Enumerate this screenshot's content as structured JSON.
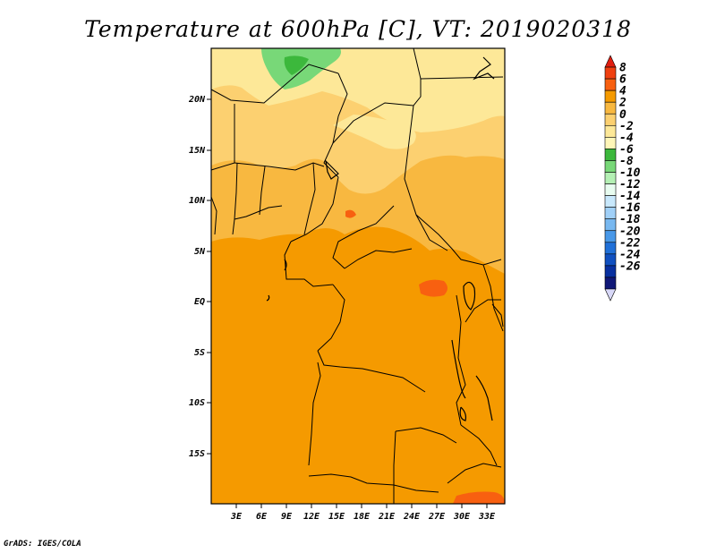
{
  "title": "Temperature at 600hPa [C], VT: 2019020318",
  "footer": "GrADS: IGES/COLA",
  "map": {
    "lat_ticks": [
      "20N",
      "15N",
      "10N",
      "5N",
      "EQ",
      "5S",
      "10S",
      "15S"
    ],
    "lon_ticks": [
      "3E",
      "6E",
      "9E",
      "12E",
      "15E",
      "18E",
      "21E",
      "24E",
      "27E",
      "30E",
      "33E"
    ]
  },
  "colorbar": {
    "labels": [
      "8",
      "6",
      "4",
      "2",
      "0",
      "-2",
      "-4",
      "-6",
      "-8",
      "-10",
      "-12",
      "-14",
      "-16",
      "-18",
      "-20",
      "-22",
      "-24",
      "-26"
    ],
    "colors": [
      "#e01e10",
      "#f04010",
      "#f86010",
      "#f59a00",
      "#f8b840",
      "#fcd070",
      "#fde898",
      "#fff6b8",
      "#3cb83c",
      "#78d878",
      "#b4f0b4",
      "#e8fcf0",
      "#c8e8fc",
      "#a0d0f8",
      "#78b8f0",
      "#4898e8",
      "#2070d8",
      "#1050c0",
      "#0830a0",
      "#101878",
      "#d8d8f8"
    ]
  },
  "chart_data": {
    "type": "heatmap",
    "title": "Temperature at 600hPa [C], VT: 2019020318",
    "variable": "Temperature at 600hPa",
    "units": "C",
    "valid_time": "2019020318",
    "lon_range_deg": [
      0,
      35
    ],
    "lat_range_deg": [
      -20,
      24
    ],
    "x_ticks": [
      "3E",
      "6E",
      "9E",
      "12E",
      "15E",
      "18E",
      "21E",
      "24E",
      "27E",
      "30E",
      "33E"
    ],
    "y_ticks": [
      "20N",
      "15N",
      "10N",
      "5N",
      "EQ",
      "5S",
      "10S",
      "15S"
    ],
    "color_levels": [
      8,
      6,
      4,
      2,
      0,
      -2,
      -4,
      -6,
      -8,
      -10,
      -12,
      -14,
      -16,
      -18,
      -20,
      -22,
      -24,
      -26
    ],
    "regions": [
      {
        "area": "far north (Sahara, ~21-24N, 5-13E)",
        "approx_value_range": "-8 to -4"
      },
      {
        "area": "northern belt (~12-22N)",
        "approx_value_range": "-4 to 0"
      },
      {
        "area": "Sahel (~5-12N)",
        "approx_value_range": "0 to 2"
      },
      {
        "area": "equatorial and southern Africa (~5N-20S)",
        "approx_value_range": "2 to 4"
      },
      {
        "area": "isolated spots (~1N 27E, ~19S 33E)",
        "approx_value_range": "4 to 6"
      }
    ]
  }
}
